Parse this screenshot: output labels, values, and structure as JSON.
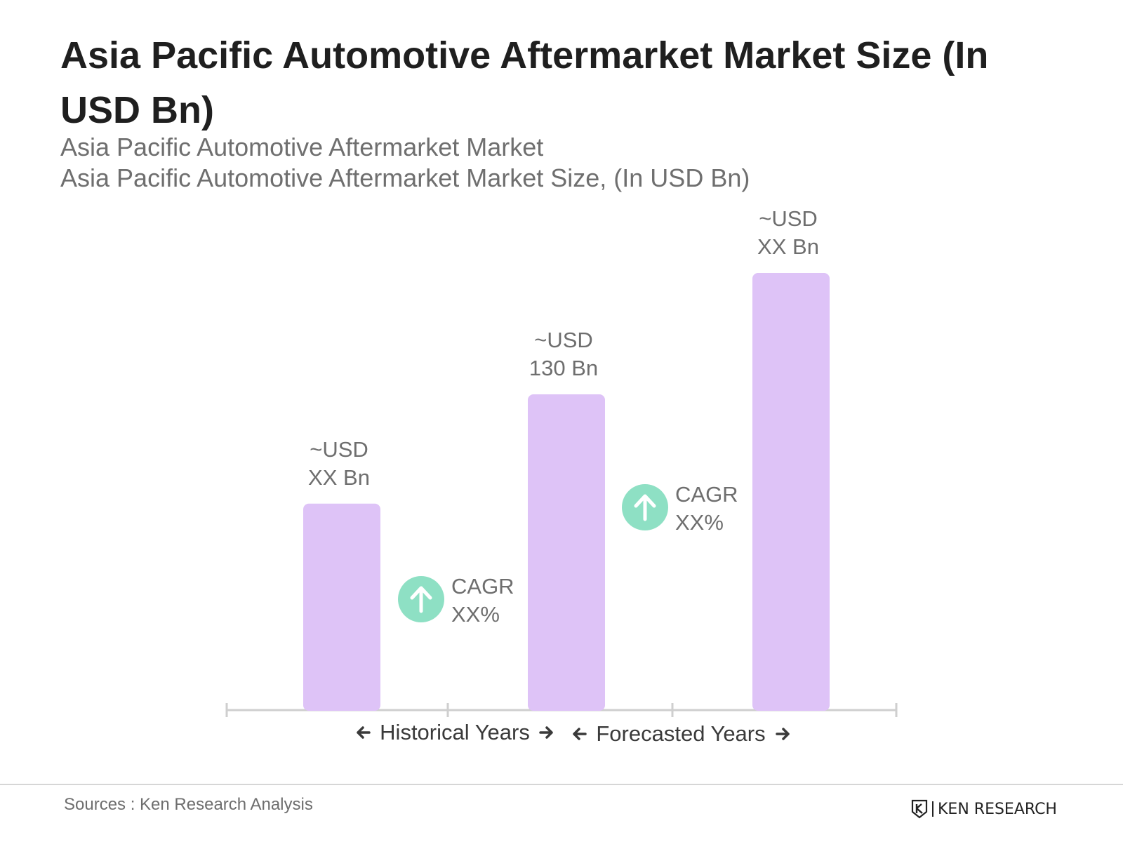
{
  "header": {
    "title": "Asia Pacific Automotive Aftermarket Market Size (In USD Bn)",
    "subtitle_line1": "Asia Pacific Automotive Aftermarket Market",
    "subtitle_line2": "Asia Pacific Automotive Aftermarket Market Size, (In USD Bn)"
  },
  "chart_data": {
    "type": "bar",
    "title": "Asia Pacific Automotive Aftermarket Market Size (In USD Bn)",
    "xlabel": "",
    "ylabel": "",
    "grid": false,
    "legend": "none",
    "categories": [
      "",
      "",
      ""
    ],
    "values": [
      85,
      130,
      180
    ],
    "bar_labels": [
      [
        "~USD",
        "XX Bn"
      ],
      [
        "~USD",
        "130 Bn"
      ],
      [
        "~USD",
        "XX Bn"
      ]
    ],
    "cagr": [
      {
        "line1": "CAGR",
        "line2": "XX%"
      },
      {
        "line1": "CAGR",
        "line2": "XX%"
      }
    ],
    "periods": [
      {
        "label": "Historical Years"
      },
      {
        "label": "Forecasted Years"
      }
    ],
    "colors": {
      "bar": "#dec3f7",
      "cagr_circle": "#8ee0c4",
      "label_text": "#6e6e6e",
      "axis": "#cfcfcf",
      "period_text": "#3a3a3a"
    }
  },
  "footer": {
    "source": "Sources : Ken Research Analysis",
    "brand": "KEN RESEARCH",
    "brand_icon": "ken-research-logo-icon"
  }
}
